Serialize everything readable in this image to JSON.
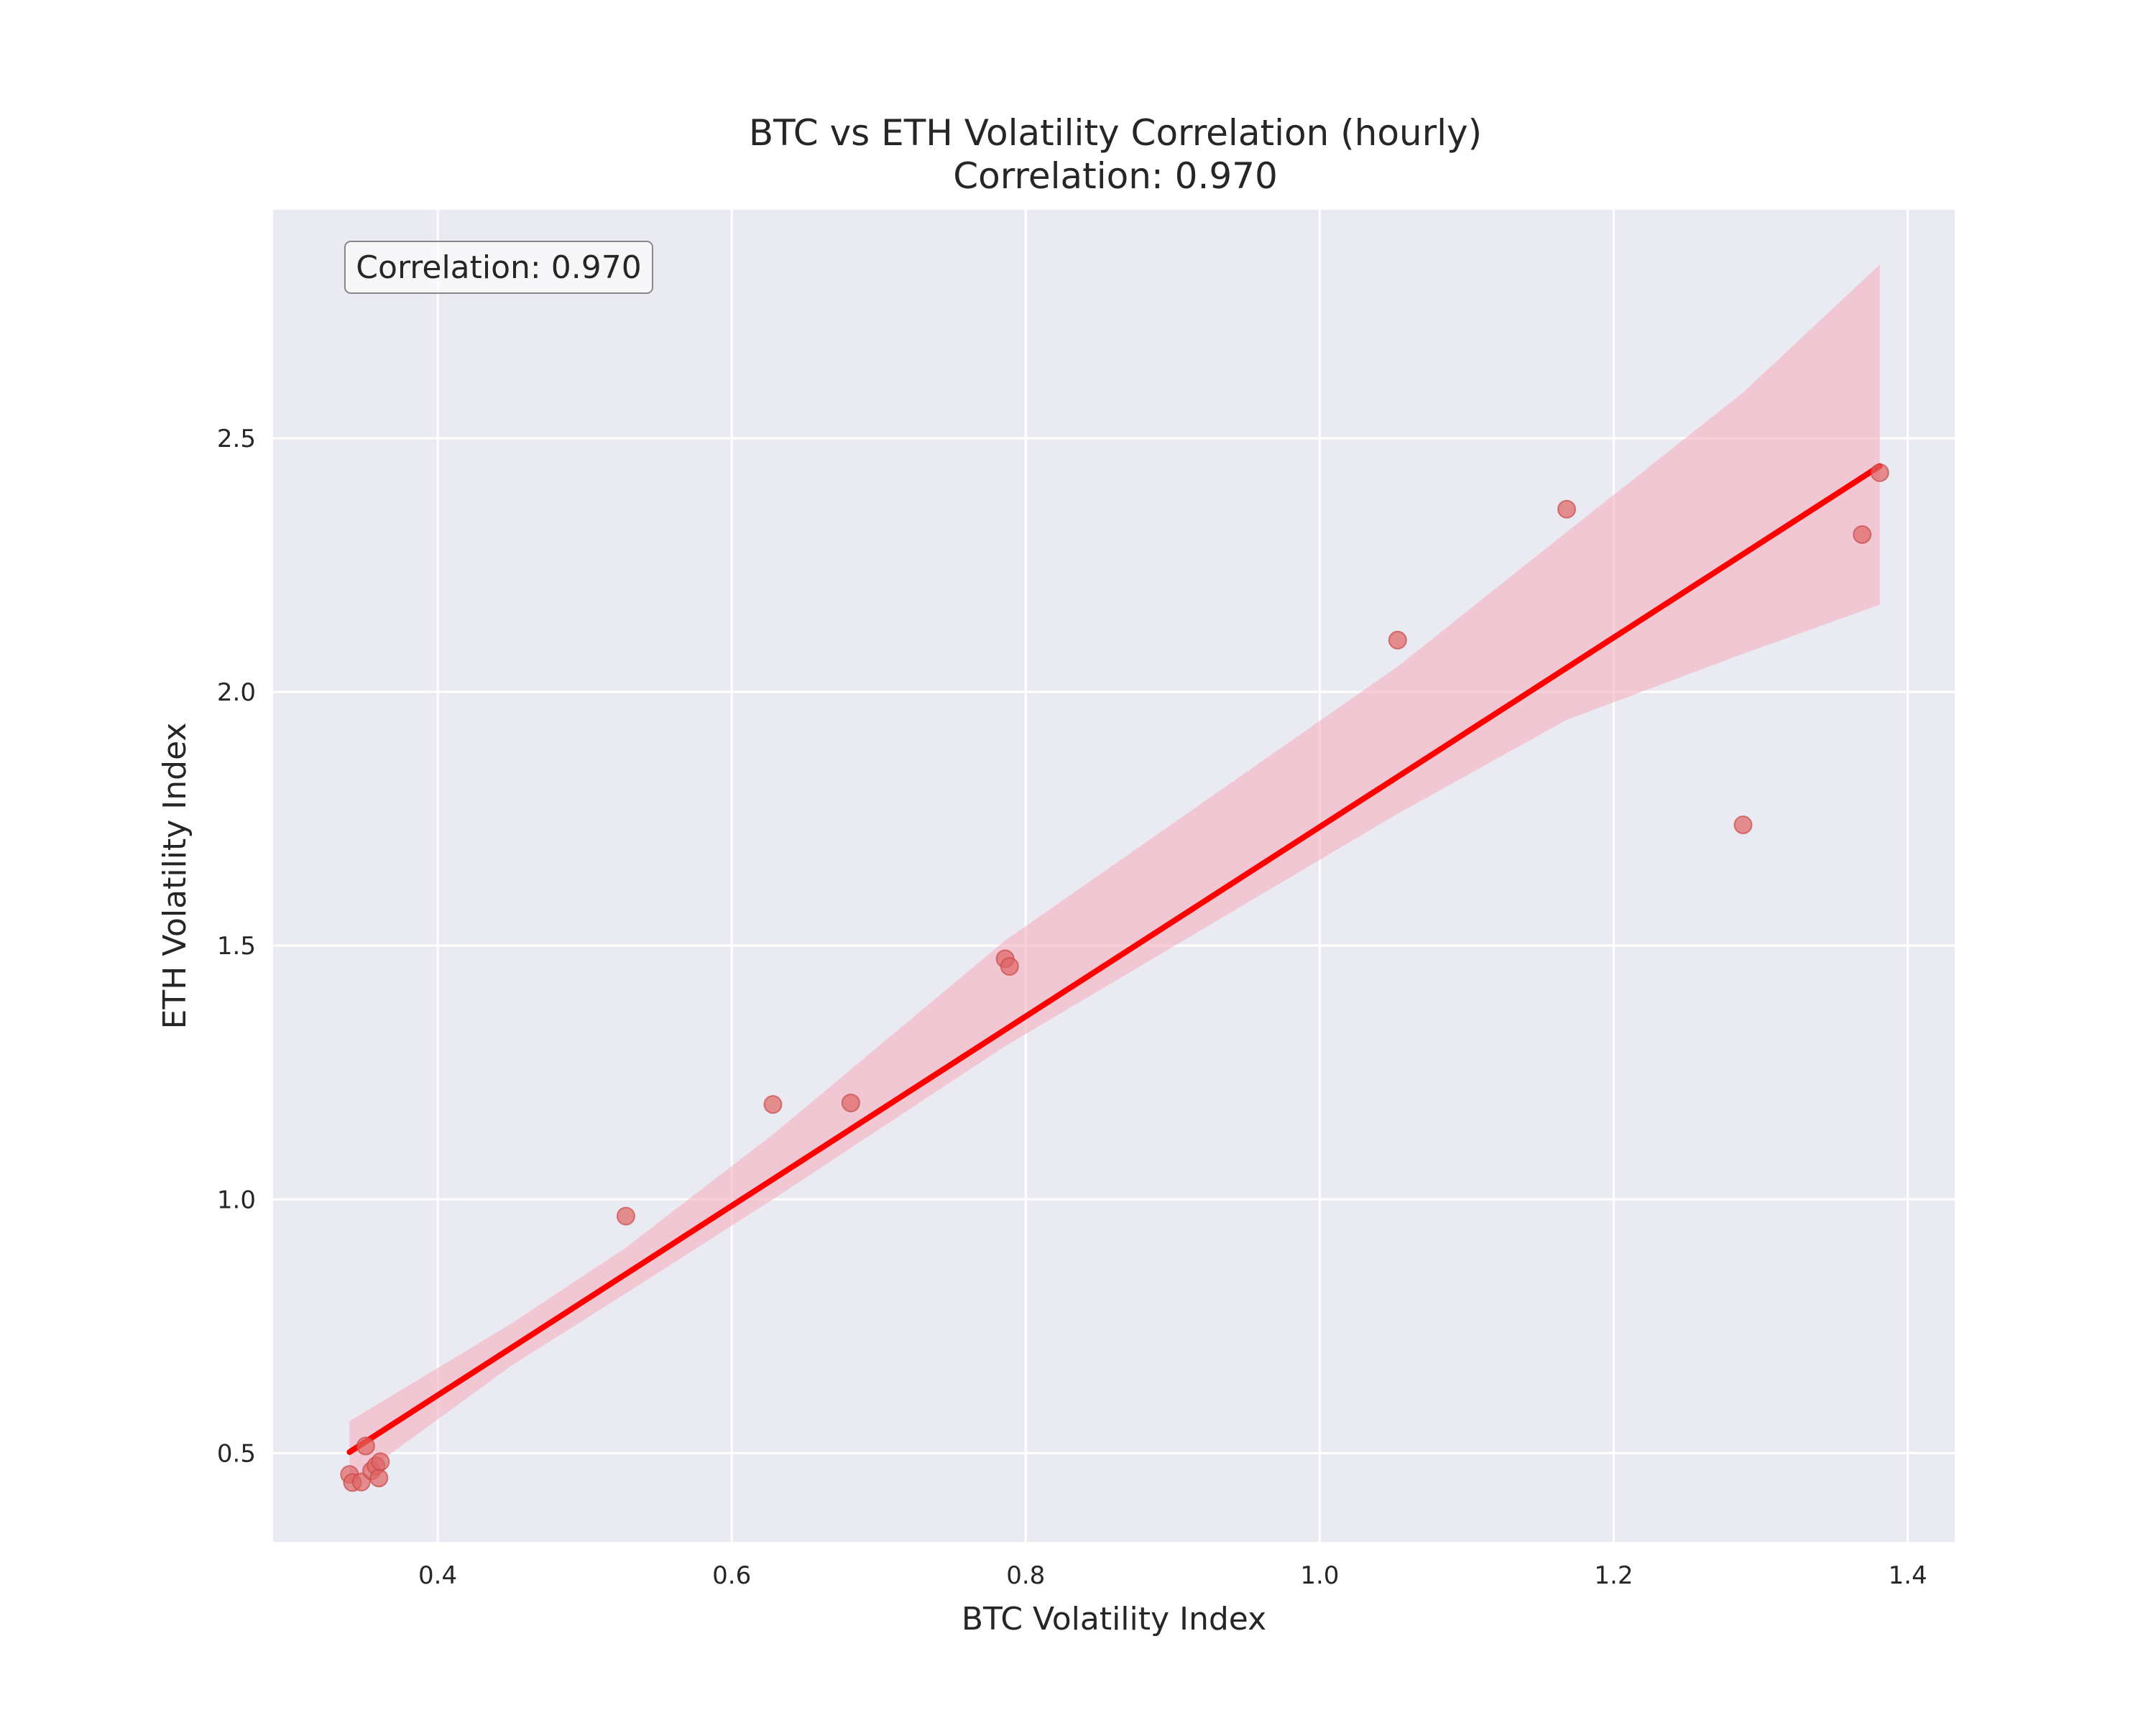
{
  "chart_data": {
    "type": "scatter",
    "title": "BTC vs ETH Volatility Correlation (hourly)",
    "subtitle": "Correlation: 0.970",
    "xlabel": "BTC Volatility Index",
    "ylabel": "ETH Volatility Index",
    "xlim": [
      0.288,
      1.432
    ],
    "ylim": [
      0.325,
      2.95
    ],
    "xticks": [
      0.4,
      0.6,
      0.8,
      1.0,
      1.2,
      1.4
    ],
    "xtick_labels": [
      "0.4",
      "0.6",
      "0.8",
      "1.0",
      "1.2",
      "1.4"
    ],
    "yticks": [
      0.5,
      1.0,
      1.5,
      2.0,
      2.5
    ],
    "ytick_labels": [
      "0.5",
      "1.0",
      "1.5",
      "2.0",
      "2.5"
    ],
    "grid": true,
    "annotation": "Correlation: 0.970",
    "points": [
      {
        "x": 0.34,
        "y": 0.458
      },
      {
        "x": 0.342,
        "y": 0.442
      },
      {
        "x": 0.348,
        "y": 0.443
      },
      {
        "x": 0.351,
        "y": 0.514
      },
      {
        "x": 0.355,
        "y": 0.465
      },
      {
        "x": 0.358,
        "y": 0.475
      },
      {
        "x": 0.36,
        "y": 0.451
      },
      {
        "x": 0.361,
        "y": 0.483
      },
      {
        "x": 0.528,
        "y": 0.967
      },
      {
        "x": 0.628,
        "y": 1.187
      },
      {
        "x": 0.681,
        "y": 1.19
      },
      {
        "x": 0.786,
        "y": 1.474
      },
      {
        "x": 0.789,
        "y": 1.459
      },
      {
        "x": 1.053,
        "y": 2.102
      },
      {
        "x": 1.168,
        "y": 2.36
      },
      {
        "x": 1.288,
        "y": 1.738
      },
      {
        "x": 1.369,
        "y": 2.31
      },
      {
        "x": 1.381,
        "y": 2.432
      }
    ],
    "regression": {
      "x": [
        0.34,
        1.381
      ],
      "y": [
        0.502,
        2.445
      ]
    },
    "confidence_band": {
      "x": [
        0.34,
        0.45,
        0.528,
        0.628,
        0.786,
        1.053,
        1.168,
        1.288,
        1.381
      ],
      "upper": [
        0.563,
        0.755,
        0.905,
        1.128,
        1.51,
        2.05,
        2.315,
        2.59,
        2.842
      ],
      "lower": [
        0.44,
        0.672,
        0.815,
        1.0,
        1.302,
        1.76,
        1.945,
        2.075,
        2.172
      ]
    },
    "colors": {
      "background": "#eaeaf2",
      "grid": "#ffffff",
      "points": "#e06464",
      "line": "#ff0000",
      "band": "#f4aab8"
    }
  }
}
